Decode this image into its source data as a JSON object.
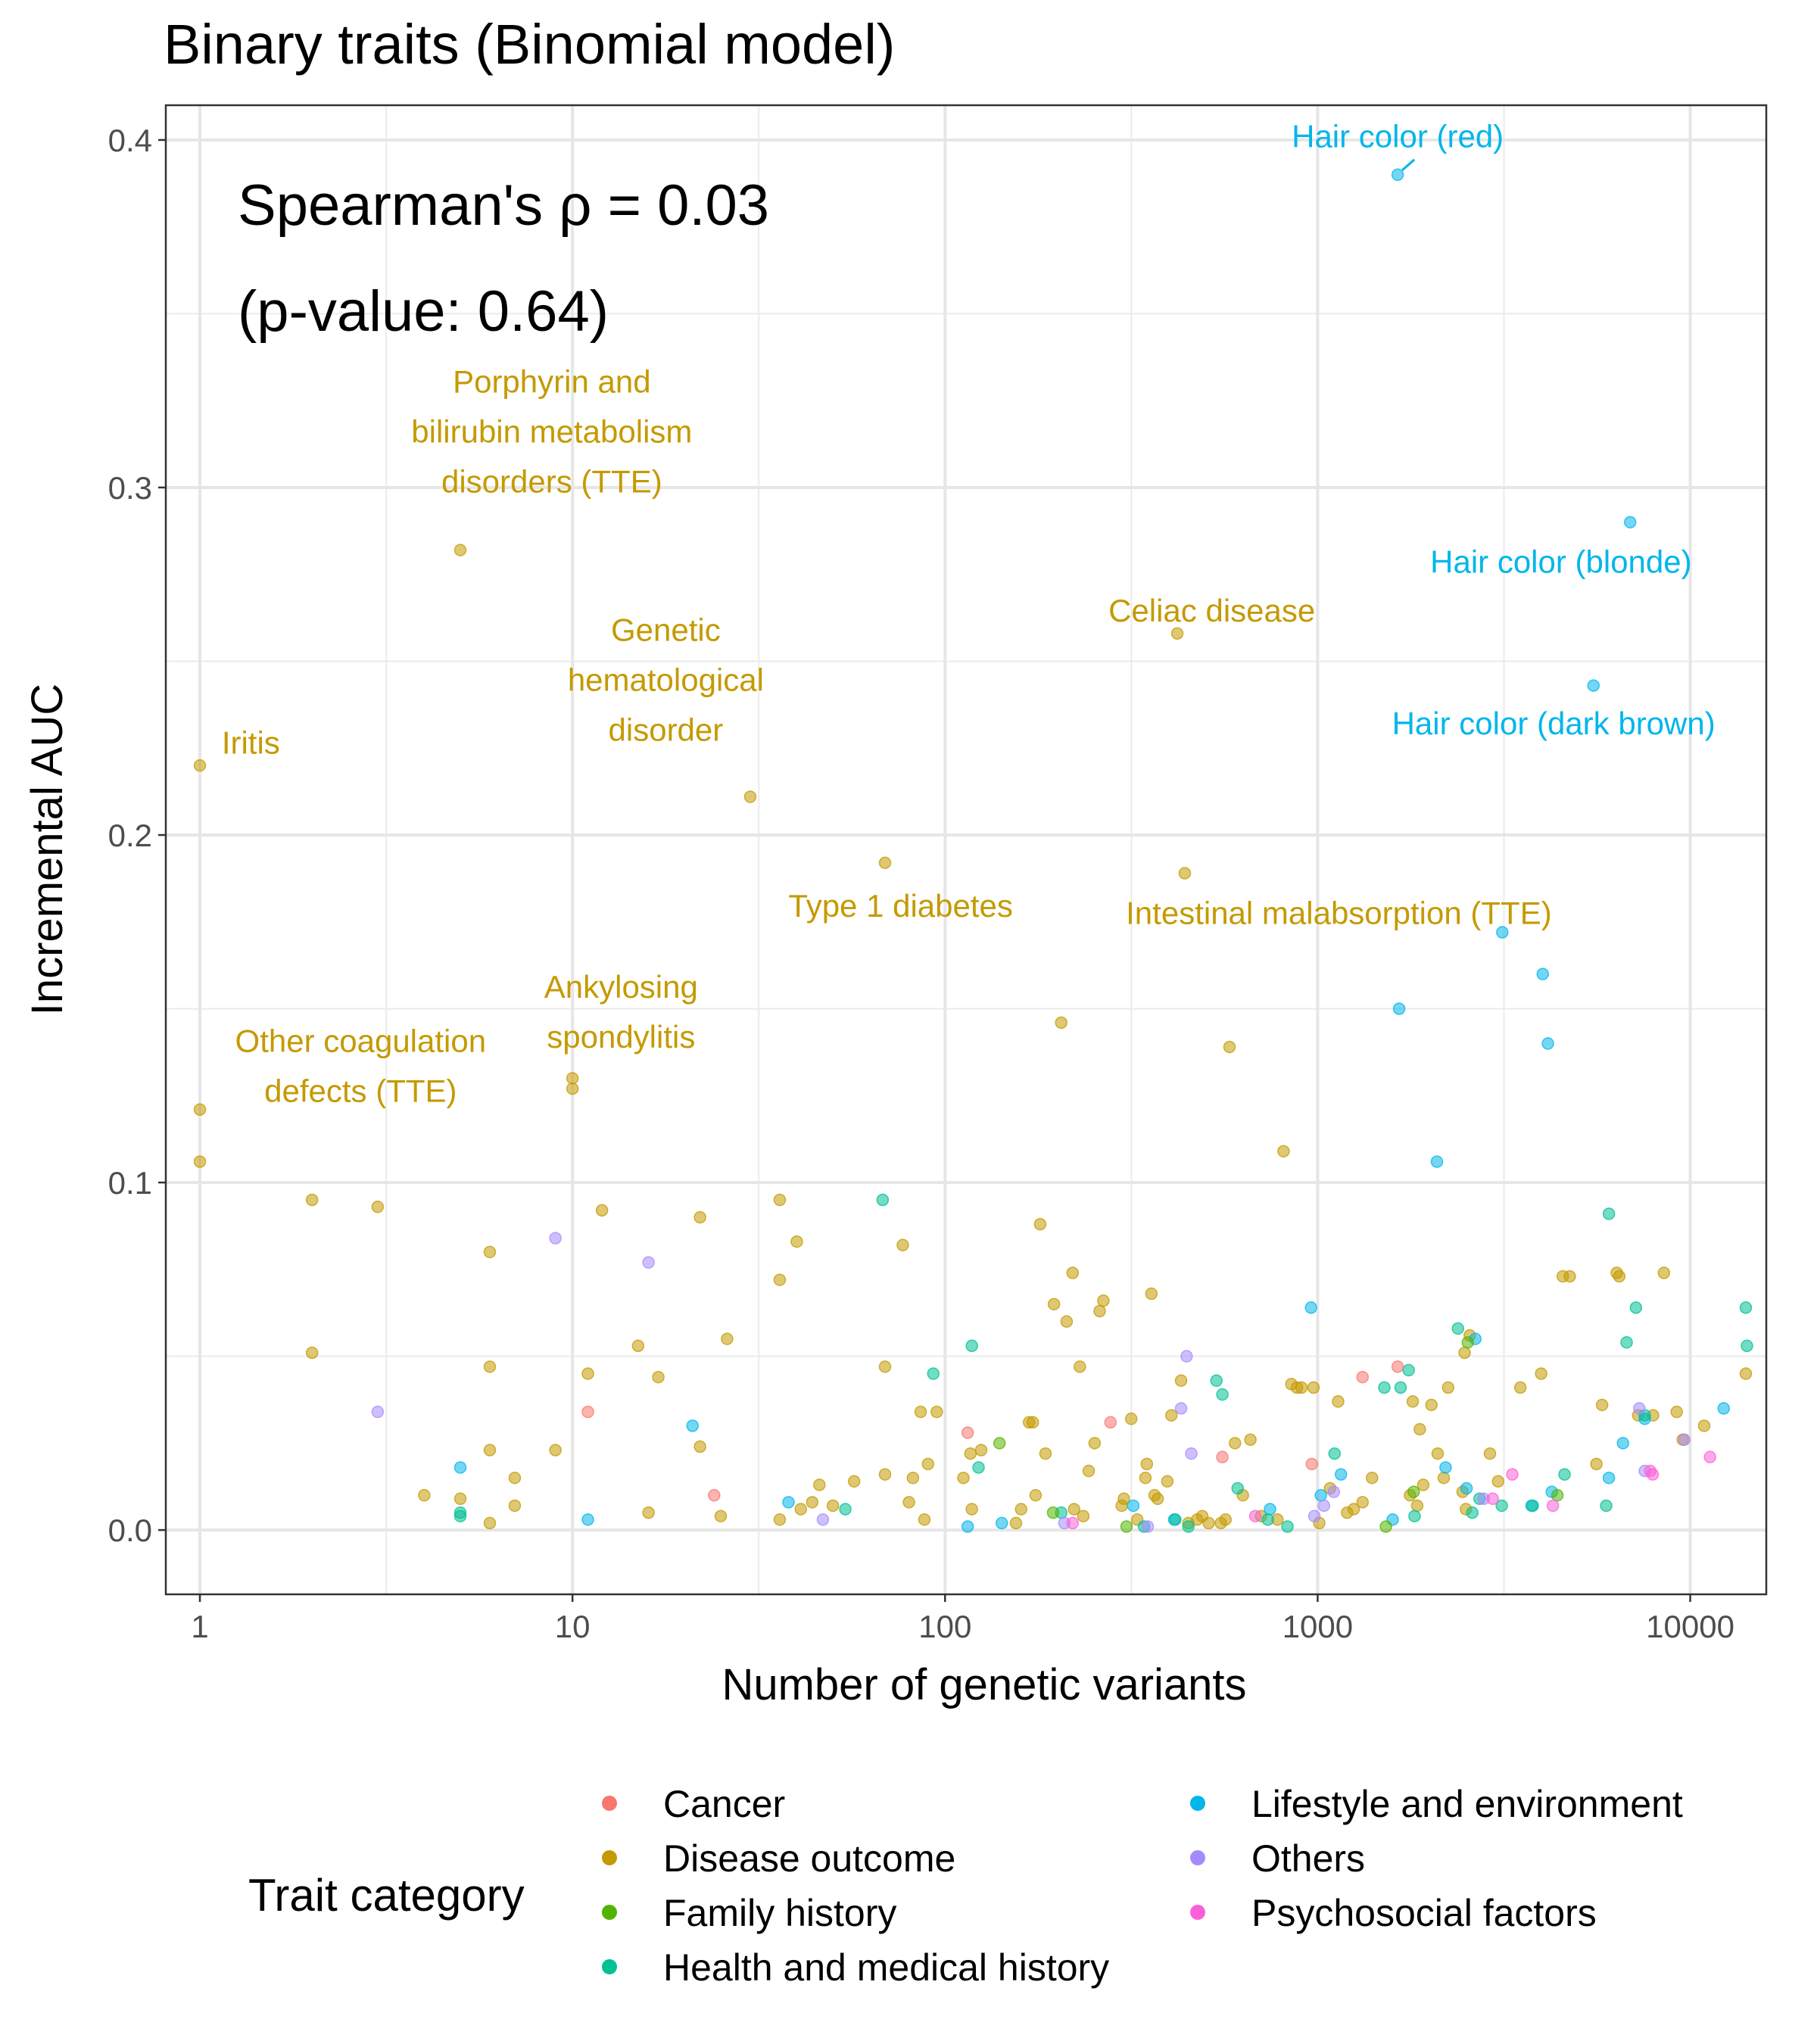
{
  "chart_data": {
    "type": "scatter",
    "title": "Binary traits (Binomial model)",
    "xlabel": "Number of genetic variants",
    "ylabel": "Incremental AUC",
    "x_scale": "log10",
    "xlim": [
      0.81,
      16000
    ],
    "ylim": [
      -0.0185,
      0.41
    ],
    "x_ticks": [
      1,
      10,
      100,
      1000,
      10000
    ],
    "x_tick_labels": [
      "1",
      "10",
      "100",
      "1000",
      "10000"
    ],
    "y_ticks": [
      0,
      0.1,
      0.2,
      0.3,
      0.4
    ],
    "y_tick_labels": [
      "0.0",
      "0.1",
      "0.2",
      "0.3",
      "0.4"
    ],
    "grid": true,
    "stat_lines": [
      "Spearman's ρ = 0.03",
      "(p-value: 0.64)"
    ],
    "legend": {
      "title": "Trait category",
      "position": "bottom",
      "items": [
        {
          "key": "cancer",
          "label": "Cancer",
          "color": "#F8766D"
        },
        {
          "key": "disease",
          "label": "Disease outcome",
          "color": "#C49A00"
        },
        {
          "key": "family",
          "label": "Family history",
          "color": "#53B400"
        },
        {
          "key": "health",
          "label": "Health and medical history",
          "color": "#00C094"
        },
        {
          "key": "lifestyle",
          "label": "Lifestyle and environment",
          "color": "#00B6EB"
        },
        {
          "key": "others",
          "label": "Others",
          "color": "#A58AFF"
        },
        {
          "key": "psycho",
          "label": "Psychosocial factors",
          "color": "#FB61D7"
        }
      ]
    },
    "annotations": [
      {
        "text": [
          "Hair color (red)"
        ],
        "x": 1640,
        "y": 0.39,
        "tx": 1640,
        "ty": 0.401,
        "category": "lifestyle",
        "leader": true
      },
      {
        "text": [
          "Hair color (blonde)"
        ],
        "x": 6900,
        "y": 0.29,
        "tx": 4500,
        "ty": 0.2785,
        "category": "lifestyle"
      },
      {
        "text": [
          "Hair color (dark brown)"
        ],
        "x": 5500,
        "y": 0.243,
        "tx": 4300,
        "ty": 0.232,
        "category": "lifestyle"
      },
      {
        "text": [
          "Celiac disease"
        ],
        "x": 420,
        "y": 0.258,
        "tx": 520,
        "ty": 0.2645,
        "category": "disease"
      },
      {
        "text": [
          "Porphyrin and",
          "bilirubin metabolism",
          "disorders (TTE)"
        ],
        "x": 5,
        "y": 0.282,
        "tx": 8.8,
        "ty": 0.316,
        "category": "disease"
      },
      {
        "text": [
          "Genetic",
          "hematological",
          "disorder"
        ],
        "x": 30,
        "y": 0.211,
        "tx": 17.8,
        "ty": 0.2445,
        "category": "disease"
      },
      {
        "text": [
          "Iritis"
        ],
        "x": 1,
        "y": 0.22,
        "tx": 1.37,
        "ty": 0.2265,
        "category": "disease"
      },
      {
        "text": [
          "Type 1 diabetes"
        ],
        "x": 69,
        "y": 0.192,
        "tx": 76,
        "ty": 0.1795,
        "category": "disease"
      },
      {
        "text": [
          "Intestinal malabsorption (TTE)"
        ],
        "x": 440,
        "y": 0.189,
        "tx": 1140,
        "ty": 0.1775,
        "category": "disease"
      },
      {
        "text": [
          "Ankylosing",
          "spondylitis"
        ],
        "x": 10,
        "y": 0.13,
        "tx": 13.5,
        "ty": 0.149,
        "category": "disease"
      },
      {
        "text": [
          "Other coagulation",
          "defects (TTE)"
        ],
        "x": 1,
        "y": 0.12,
        "tx": 2.7,
        "ty": 0.1335,
        "category": "disease"
      }
    ],
    "series": [
      {
        "category": "disease",
        "name": "Disease outcome",
        "points": [
          [
            1,
            0.22
          ],
          [
            1,
            0.121
          ],
          [
            1,
            0.106
          ],
          [
            2,
            0.095
          ],
          [
            2,
            0.051
          ],
          [
            3,
            0.093
          ],
          [
            4,
            0.01
          ],
          [
            5,
            0.282
          ],
          [
            5,
            0.009
          ],
          [
            6,
            0.08
          ],
          [
            6,
            0.047
          ],
          [
            6,
            0.023
          ],
          [
            6,
            0.002
          ],
          [
            7,
            0.015
          ],
          [
            7,
            0.007
          ],
          [
            9,
            0.023
          ],
          [
            10,
            0.13
          ],
          [
            10,
            0.127
          ],
          [
            11,
            0.045
          ],
          [
            12,
            0.092
          ],
          [
            15,
            0.053
          ],
          [
            16,
            0.005
          ],
          [
            17,
            0.044
          ],
          [
            22,
            0.09
          ],
          [
            22,
            0.024
          ],
          [
            25,
            0.004
          ],
          [
            26,
            0.055
          ],
          [
            30,
            0.211
          ],
          [
            36,
            0.095
          ],
          [
            36,
            0.072
          ],
          [
            36,
            0.003
          ],
          [
            40,
            0.083
          ],
          [
            41,
            0.006
          ],
          [
            44,
            0.008
          ],
          [
            46,
            0.013
          ],
          [
            50,
            0.007
          ],
          [
            57,
            0.014
          ],
          [
            69,
            0.192
          ],
          [
            69,
            0.047
          ],
          [
            69,
            0.016
          ],
          [
            77,
            0.082
          ],
          [
            80,
            0.008
          ],
          [
            82,
            0.015
          ],
          [
            86,
            0.034
          ],
          [
            88,
            0.003
          ],
          [
            90,
            0.019
          ],
          [
            95,
            0.034
          ],
          [
            112,
            0.015
          ],
          [
            117,
            0.022
          ],
          [
            118,
            0.006
          ],
          [
            125,
            0.023
          ],
          [
            155,
            0.002
          ],
          [
            160,
            0.006
          ],
          [
            168,
            0.031
          ],
          [
            172,
            0.031
          ],
          [
            175,
            0.01
          ],
          [
            180,
            0.088
          ],
          [
            186,
            0.022
          ],
          [
            196,
            0.065
          ],
          [
            205,
            0.146
          ],
          [
            212,
            0.06
          ],
          [
            220,
            0.074
          ],
          [
            222,
            0.006
          ],
          [
            230,
            0.047
          ],
          [
            235,
            0.004
          ],
          [
            243,
            0.017
          ],
          [
            252,
            0.025
          ],
          [
            260,
            0.063
          ],
          [
            266,
            0.066
          ],
          [
            298,
            0.007
          ],
          [
            302,
            0.009
          ],
          [
            316,
            0.032
          ],
          [
            328,
            0.003
          ],
          [
            345,
            0.015
          ],
          [
            348,
            0.019
          ],
          [
            358,
            0.068
          ],
          [
            365,
            0.01
          ],
          [
            372,
            0.009
          ],
          [
            395,
            0.014
          ],
          [
            405,
            0.033
          ],
          [
            420,
            0.258
          ],
          [
            430,
            0.043
          ],
          [
            440,
            0.189
          ],
          [
            450,
            0.002
          ],
          [
            475,
            0.003
          ],
          [
            490,
            0.004
          ],
          [
            510,
            0.002
          ],
          [
            550,
            0.002
          ],
          [
            566,
            0.003
          ],
          [
            580,
            0.139
          ],
          [
            600,
            0.025
          ],
          [
            630,
            0.01
          ],
          [
            660,
            0.026
          ],
          [
            705,
            0.004
          ],
          [
            780,
            0.003
          ],
          [
            810,
            0.109
          ],
          [
            850,
            0.042
          ],
          [
            880,
            0.041
          ],
          [
            905,
            0.041
          ],
          [
            975,
            0.041
          ],
          [
            1010,
            0.002
          ],
          [
            1080,
            0.012
          ],
          [
            1135,
            0.037
          ],
          [
            1200,
            0.005
          ],
          [
            1250,
            0.006
          ],
          [
            1320,
            0.008
          ],
          [
            1400,
            0.015
          ],
          [
            1770,
            0.01
          ],
          [
            1800,
            0.037
          ],
          [
            1850,
            0.007
          ],
          [
            1880,
            0.029
          ],
          [
            1920,
            0.013
          ],
          [
            2020,
            0.036
          ],
          [
            2100,
            0.022
          ],
          [
            2180,
            0.015
          ],
          [
            2240,
            0.041
          ],
          [
            2450,
            0.011
          ],
          [
            2480,
            0.051
          ],
          [
            2500,
            0.006
          ],
          [
            2560,
            0.056
          ],
          [
            2900,
            0.022
          ],
          [
            3050,
            0.014
          ],
          [
            3500,
            0.041
          ],
          [
            3980,
            0.045
          ],
          [
            4550,
            0.073
          ],
          [
            4750,
            0.073
          ],
          [
            5600,
            0.019
          ],
          [
            5800,
            0.036
          ],
          [
            6350,
            0.074
          ],
          [
            6450,
            0.073
          ],
          [
            7250,
            0.033
          ],
          [
            7950,
            0.033
          ],
          [
            8500,
            0.074
          ],
          [
            9200,
            0.034
          ],
          [
            9550,
            0.026
          ],
          [
            10900,
            0.03
          ],
          [
            14100,
            0.045
          ]
        ]
      },
      {
        "category": "lifestyle",
        "name": "Lifestyle and environment",
        "points": [
          [
            1640,
            0.39
          ],
          [
            6900,
            0.29
          ],
          [
            5500,
            0.243
          ],
          [
            3130,
            0.172
          ],
          [
            4020,
            0.16
          ],
          [
            4150,
            0.14
          ],
          [
            1655,
            0.15
          ],
          [
            2090,
            0.106
          ],
          [
            960,
            0.064
          ],
          [
            2650,
            0.055
          ],
          [
            21,
            0.03
          ],
          [
            5,
            0.018
          ],
          [
            11,
            0.003
          ],
          [
            38,
            0.008
          ],
          [
            115,
            0.001
          ],
          [
            142,
            0.002
          ],
          [
            320,
            0.007
          ],
          [
            412,
            0.003
          ],
          [
            745,
            0.006
          ],
          [
            1020,
            0.01
          ],
          [
            1155,
            0.016
          ],
          [
            1590,
            0.003
          ],
          [
            2205,
            0.018
          ],
          [
            2510,
            0.012
          ],
          [
            3750,
            0.007
          ],
          [
            4250,
            0.011
          ],
          [
            6600,
            0.025
          ],
          [
            7550,
            0.032
          ],
          [
            12300,
            0.035
          ],
          [
            6050,
            0.015
          ]
        ]
      },
      {
        "category": "health",
        "name": "Health and medical history",
        "points": [
          [
            5,
            0.005
          ],
          [
            5,
            0.004
          ],
          [
            54,
            0.006
          ],
          [
            68,
            0.095
          ],
          [
            93,
            0.045
          ],
          [
            118,
            0.053
          ],
          [
            123,
            0.018
          ],
          [
            205,
            0.005
          ],
          [
            342,
            0.001
          ],
          [
            415,
            0.003
          ],
          [
            535,
            0.043
          ],
          [
            555,
            0.039
          ],
          [
            610,
            0.012
          ],
          [
            735,
            0.003
          ],
          [
            1110,
            0.022
          ],
          [
            1510,
            0.041
          ],
          [
            1670,
            0.041
          ],
          [
            1755,
            0.046
          ],
          [
            1820,
            0.004
          ],
          [
            2380,
            0.058
          ],
          [
            2600,
            0.005
          ],
          [
            2720,
            0.009
          ],
          [
            3120,
            0.007
          ],
          [
            3780,
            0.007
          ],
          [
            4600,
            0.016
          ],
          [
            5950,
            0.007
          ],
          [
            6050,
            0.091
          ],
          [
            6750,
            0.054
          ],
          [
            7150,
            0.064
          ],
          [
            7550,
            0.033
          ],
          [
            14100,
            0.064
          ],
          [
            14200,
            0.053
          ],
          [
            450,
            0.001
          ],
          [
            830,
            0.001
          ]
        ]
      },
      {
        "category": "family",
        "name": "Family history",
        "points": [
          [
            140,
            0.025
          ],
          [
            195,
            0.005
          ],
          [
            307,
            0.001
          ],
          [
            1525,
            0.001
          ],
          [
            1810,
            0.011
          ],
          [
            2530,
            0.054
          ],
          [
            4400,
            0.01
          ]
        ]
      },
      {
        "category": "cancer",
        "name": "Cancer",
        "points": [
          [
            11,
            0.034
          ],
          [
            24,
            0.01
          ],
          [
            115,
            0.028
          ],
          [
            278,
            0.031
          ],
          [
            555,
            0.021
          ],
          [
            965,
            0.019
          ],
          [
            1320,
            0.044
          ],
          [
            1640,
            0.047
          ]
        ]
      },
      {
        "category": "others",
        "name": "Others",
        "points": [
          [
            3,
            0.034
          ],
          [
            9,
            0.084
          ],
          [
            16,
            0.077
          ],
          [
            47,
            0.003
          ],
          [
            209,
            0.002
          ],
          [
            350,
            0.001
          ],
          [
            430,
            0.035
          ],
          [
            445,
            0.05
          ],
          [
            458,
            0.022
          ],
          [
            980,
            0.004
          ],
          [
            1040,
            0.007
          ],
          [
            1105,
            0.011
          ],
          [
            2790,
            0.009
          ],
          [
            7300,
            0.035
          ],
          [
            7550,
            0.017
          ],
          [
            9650,
            0.026
          ]
        ]
      },
      {
        "category": "psycho",
        "name": "Psychosocial factors",
        "points": [
          [
            220,
            0.002
          ],
          [
            680,
            0.004
          ],
          [
            2950,
            0.009
          ],
          [
            3330,
            0.016
          ],
          [
            4280,
            0.007
          ],
          [
            7810,
            0.017
          ],
          [
            7930,
            0.016
          ],
          [
            11300,
            0.021
          ]
        ]
      }
    ]
  }
}
